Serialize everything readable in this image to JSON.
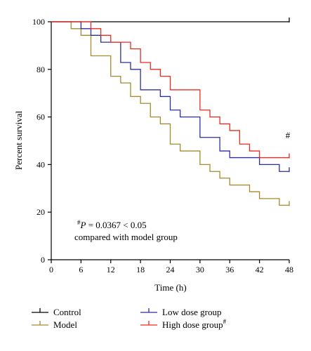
{
  "chart_data": {
    "type": "line",
    "step": true,
    "title": "",
    "xlabel": "Time (h)",
    "ylabel": "Percent survival",
    "xlim": [
      0,
      48
    ],
    "ylim": [
      0,
      100
    ],
    "xticks": [
      0,
      6,
      12,
      18,
      24,
      30,
      36,
      42,
      48
    ],
    "yticks": [
      0,
      20,
      40,
      60,
      80,
      100
    ],
    "grid": false,
    "legend_position": "bottom",
    "series": [
      {
        "name": "Control",
        "color": "#000000",
        "x": [
          0,
          48
        ],
        "y": [
          100,
          100
        ],
        "censor": [
          48,
          100
        ]
      },
      {
        "name": "Model",
        "color": "#a38b2d",
        "x": [
          0,
          4,
          6,
          8,
          12,
          14,
          16,
          18,
          20,
          22,
          24,
          26,
          30,
          32,
          34,
          36,
          40,
          42,
          46,
          48
        ],
        "y": [
          100,
          97.1,
          94.3,
          85.7,
          77.1,
          74.3,
          68.6,
          65.7,
          60.0,
          57.1,
          48.6,
          45.7,
          40.0,
          37.1,
          34.3,
          31.4,
          28.6,
          25.7,
          22.9,
          22.9
        ],
        "censor": [
          48,
          22.9
        ]
      },
      {
        "name": "Low dose group",
        "color": "#2b2ea0",
        "x": [
          0,
          6,
          8,
          10,
          14,
          16,
          18,
          22,
          24,
          26,
          30,
          34,
          36,
          42,
          46,
          48
        ],
        "y": [
          100,
          97.1,
          94.3,
          91.4,
          82.9,
          80.0,
          71.4,
          68.6,
          62.9,
          60.0,
          51.4,
          45.7,
          42.9,
          40.0,
          37.1,
          37.1
        ],
        "censor": [
          48,
          37.1
        ]
      },
      {
        "name": "High dose group",
        "legend_suffix": "#",
        "color": "#ee2a1e",
        "x": [
          0,
          8,
          10,
          12,
          16,
          18,
          20,
          22,
          24,
          30,
          32,
          34,
          36,
          38,
          40,
          42,
          44,
          48
        ],
        "y": [
          100,
          97.1,
          94.3,
          91.4,
          88.6,
          82.9,
          80.0,
          77.1,
          71.4,
          62.9,
          60.0,
          57.1,
          54.3,
          48.6,
          45.7,
          42.9,
          42.9,
          42.9
        ],
        "censor": [
          48,
          42.9
        ]
      }
    ],
    "annotations": [
      {
        "id": "hash_mark",
        "text": "#"
      },
      {
        "id": "pvalue_prefix",
        "text": "#"
      },
      {
        "id": "pvalue_p",
        "text": "P"
      },
      {
        "id": "pvalue_rest",
        "text": " = 0.0367 < 0.05"
      },
      {
        "id": "comparison_note",
        "text": "compared with model group"
      }
    ]
  }
}
